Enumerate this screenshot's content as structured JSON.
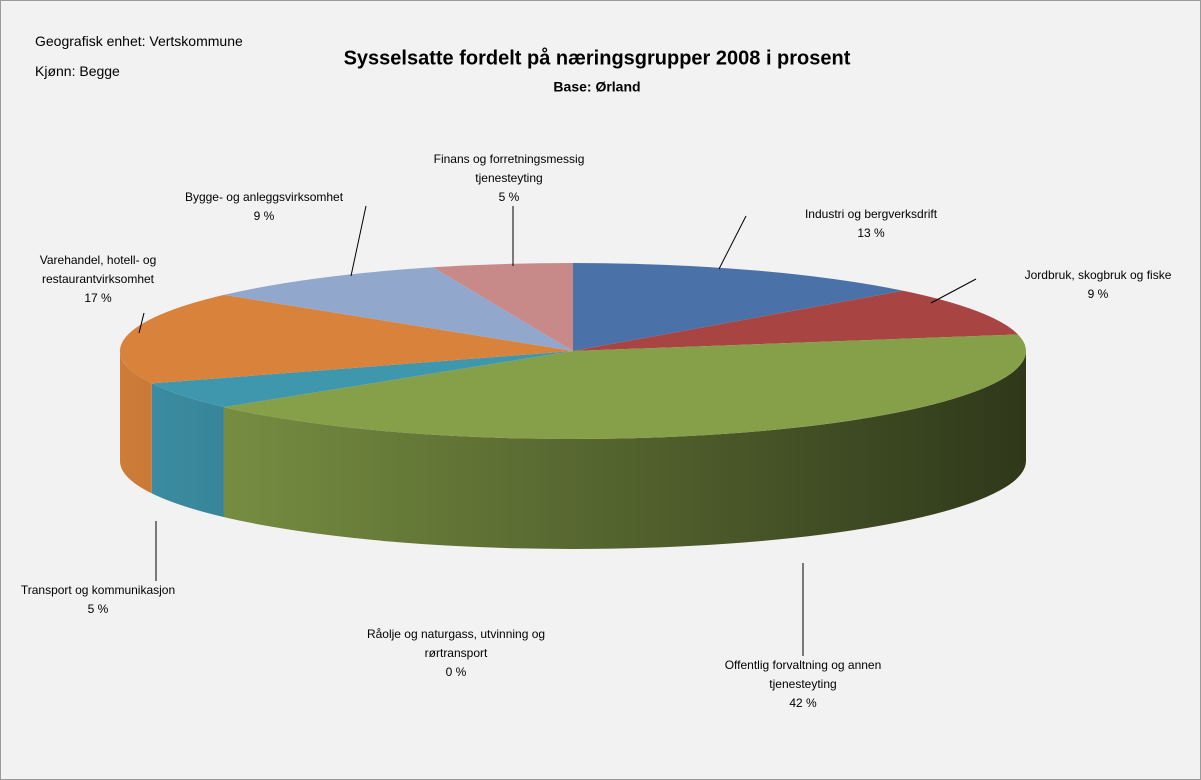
{
  "header": {
    "unit": "Geografisk enhet: Vertskommune",
    "gender": "Kjønn: Begge"
  },
  "chart_data": {
    "type": "pie",
    "title": "Sysselsatte fordelt på næringsgrupper 2008 i prosent",
    "subtitle": "Base: Ørland",
    "categories": [
      "Industri og bergverksdrift",
      "Jordbruk, skogbruk og fiske",
      "Offentlig forvaltning og annen tjenesteyting",
      "Råolje og naturgass, utvinning og rørtransport",
      "Transport og kommunikasjon",
      "Varehandel, hotell- og restaurantvirksomhet",
      "Bygge- og anleggsvirksomhet",
      "Finans og forretningsmessig tjenesteyting"
    ],
    "values": [
      13,
      9,
      42,
      0,
      5,
      17,
      9,
      5
    ],
    "value_labels": [
      "13 %",
      "9 %",
      "42 %",
      "0 %",
      "5 %",
      "17 %",
      "9 %",
      "5 %"
    ],
    "colors": [
      "#4a72a8",
      "#a84442",
      "#86a04a",
      "#7a5d9c",
      "#3f97ad",
      "#d9823b",
      "#91a7cc",
      "#c78a88"
    ]
  }
}
